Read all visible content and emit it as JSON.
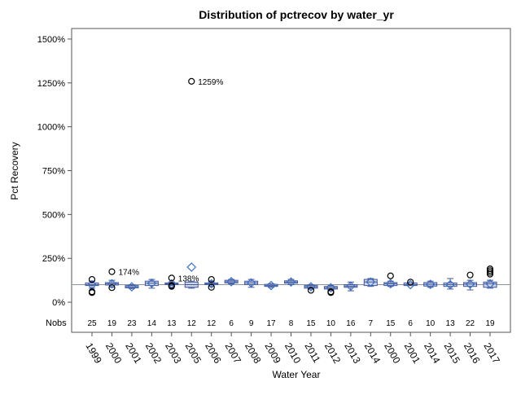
{
  "chart_data": {
    "type": "box",
    "title": "Distribution of pctrecov by water_yr",
    "x_label": "Water Year",
    "y_label": "Pct Recovery",
    "categories": [
      "1999",
      "2000",
      "2001",
      "2002",
      "2003",
      "2005",
      "2006",
      "2007",
      "2008",
      "2009",
      "2010",
      "2011",
      "2012",
      "2013",
      "2014",
      "2000",
      "2001",
      "2014",
      "2015",
      "2016",
      "2017"
    ],
    "boxes": [
      {
        "low": 80,
        "q1": 95,
        "median": 100,
        "q3": 110,
        "high": 120,
        "mean": 100,
        "outliers": [
          130,
          60,
          55
        ]
      },
      {
        "low": 85,
        "q1": 98,
        "median": 105,
        "q3": 112,
        "high": 125,
        "mean": 105,
        "outliers": [
          174,
          83
        ],
        "outlier_labels": [
          "174%",
          null
        ]
      },
      {
        "low": 78,
        "q1": 82,
        "median": 88,
        "q3": 95,
        "high": 100,
        "mean": 88,
        "outliers": []
      },
      {
        "low": 80,
        "q1": 95,
        "median": 108,
        "q3": 120,
        "high": 130,
        "mean": 108,
        "outliers": []
      },
      {
        "low": 95,
        "q1": 100,
        "median": 105,
        "q3": 110,
        "high": 115,
        "mean": 105,
        "outliers": [
          138,
          90,
          95
        ],
        "outlier_labels": [
          "138%",
          null,
          null
        ]
      },
      {
        "low": 80,
        "q1": 85,
        "median": 100,
        "q3": 115,
        "high": 120,
        "mean": 200,
        "outliers": [
          1259
        ],
        "outlier_labels": [
          "1259%"
        ]
      },
      {
        "low": 90,
        "q1": 100,
        "median": 105,
        "q3": 110,
        "high": 120,
        "mean": 105,
        "outliers": [
          130,
          85
        ]
      },
      {
        "low": 105,
        "q1": 110,
        "median": 117,
        "q3": 125,
        "high": 130,
        "mean": 117,
        "outliers": []
      },
      {
        "low": 85,
        "q1": 100,
        "median": 110,
        "q3": 120,
        "high": 130,
        "mean": 110,
        "outliers": []
      },
      {
        "low": 85,
        "q1": 90,
        "median": 95,
        "q3": 102,
        "high": 105,
        "mean": 95,
        "outliers": []
      },
      {
        "low": 100,
        "q1": 108,
        "median": 115,
        "q3": 122,
        "high": 130,
        "mean": 115,
        "outliers": []
      },
      {
        "low": 75,
        "q1": 80,
        "median": 88,
        "q3": 95,
        "high": 100,
        "mean": 88,
        "outliers": [
          68
        ]
      },
      {
        "low": 70,
        "q1": 75,
        "median": 82,
        "q3": 90,
        "high": 95,
        "mean": 82,
        "outliers": [
          60,
          55
        ]
      },
      {
        "low": 65,
        "q1": 85,
        "median": 92,
        "q3": 100,
        "high": 115,
        "mean": 92,
        "outliers": []
      },
      {
        "low": 90,
        "q1": 95,
        "median": 115,
        "q3": 130,
        "high": 135,
        "mean": 115,
        "outliers": []
      },
      {
        "low": 90,
        "q1": 95,
        "median": 105,
        "q3": 112,
        "high": 120,
        "mean": 105,
        "outliers": [
          150
        ]
      },
      {
        "low": 95,
        "q1": 95,
        "median": 100,
        "q3": 110,
        "high": 110,
        "mean": 100,
        "outliers": [
          115
        ]
      },
      {
        "low": 85,
        "q1": 92,
        "median": 102,
        "q3": 112,
        "high": 120,
        "mean": 102,
        "outliers": []
      },
      {
        "low": 75,
        "q1": 90,
        "median": 100,
        "q3": 110,
        "high": 135,
        "mean": 100,
        "outliers": []
      },
      {
        "low": 70,
        "q1": 90,
        "median": 103,
        "q3": 112,
        "high": 125,
        "mean": 103,
        "outliers": [
          155
        ]
      },
      {
        "low": 80,
        "q1": 85,
        "median": 105,
        "q3": 115,
        "high": 125,
        "mean": 105,
        "outliers": [
          190,
          180,
          170,
          160
        ]
      }
    ],
    "nobs_label": "Nobs",
    "nobs": [
      25,
      19,
      23,
      14,
      13,
      12,
      12,
      6,
      9,
      17,
      8,
      15,
      10,
      16,
      7,
      15,
      6,
      10,
      13,
      22,
      19
    ],
    "reference_line": 100,
    "ylim": [
      -60,
      1560
    ],
    "yticks": [
      {
        "value": 0,
        "label": "0%"
      },
      {
        "value": 250,
        "label": "250%"
      },
      {
        "value": 500,
        "label": "500%"
      },
      {
        "value": 750,
        "label": "750%"
      },
      {
        "value": 1000,
        "label": "1000%"
      },
      {
        "value": 1250,
        "label": "1250%"
      },
      {
        "value": 1500,
        "label": "1500%"
      }
    ],
    "box_fill": "#cad5e6",
    "box_stroke": "#44569a",
    "mean_color": "#3b6fc4",
    "outlier_color": "#000000",
    "reference_color": "#8a94a8"
  }
}
